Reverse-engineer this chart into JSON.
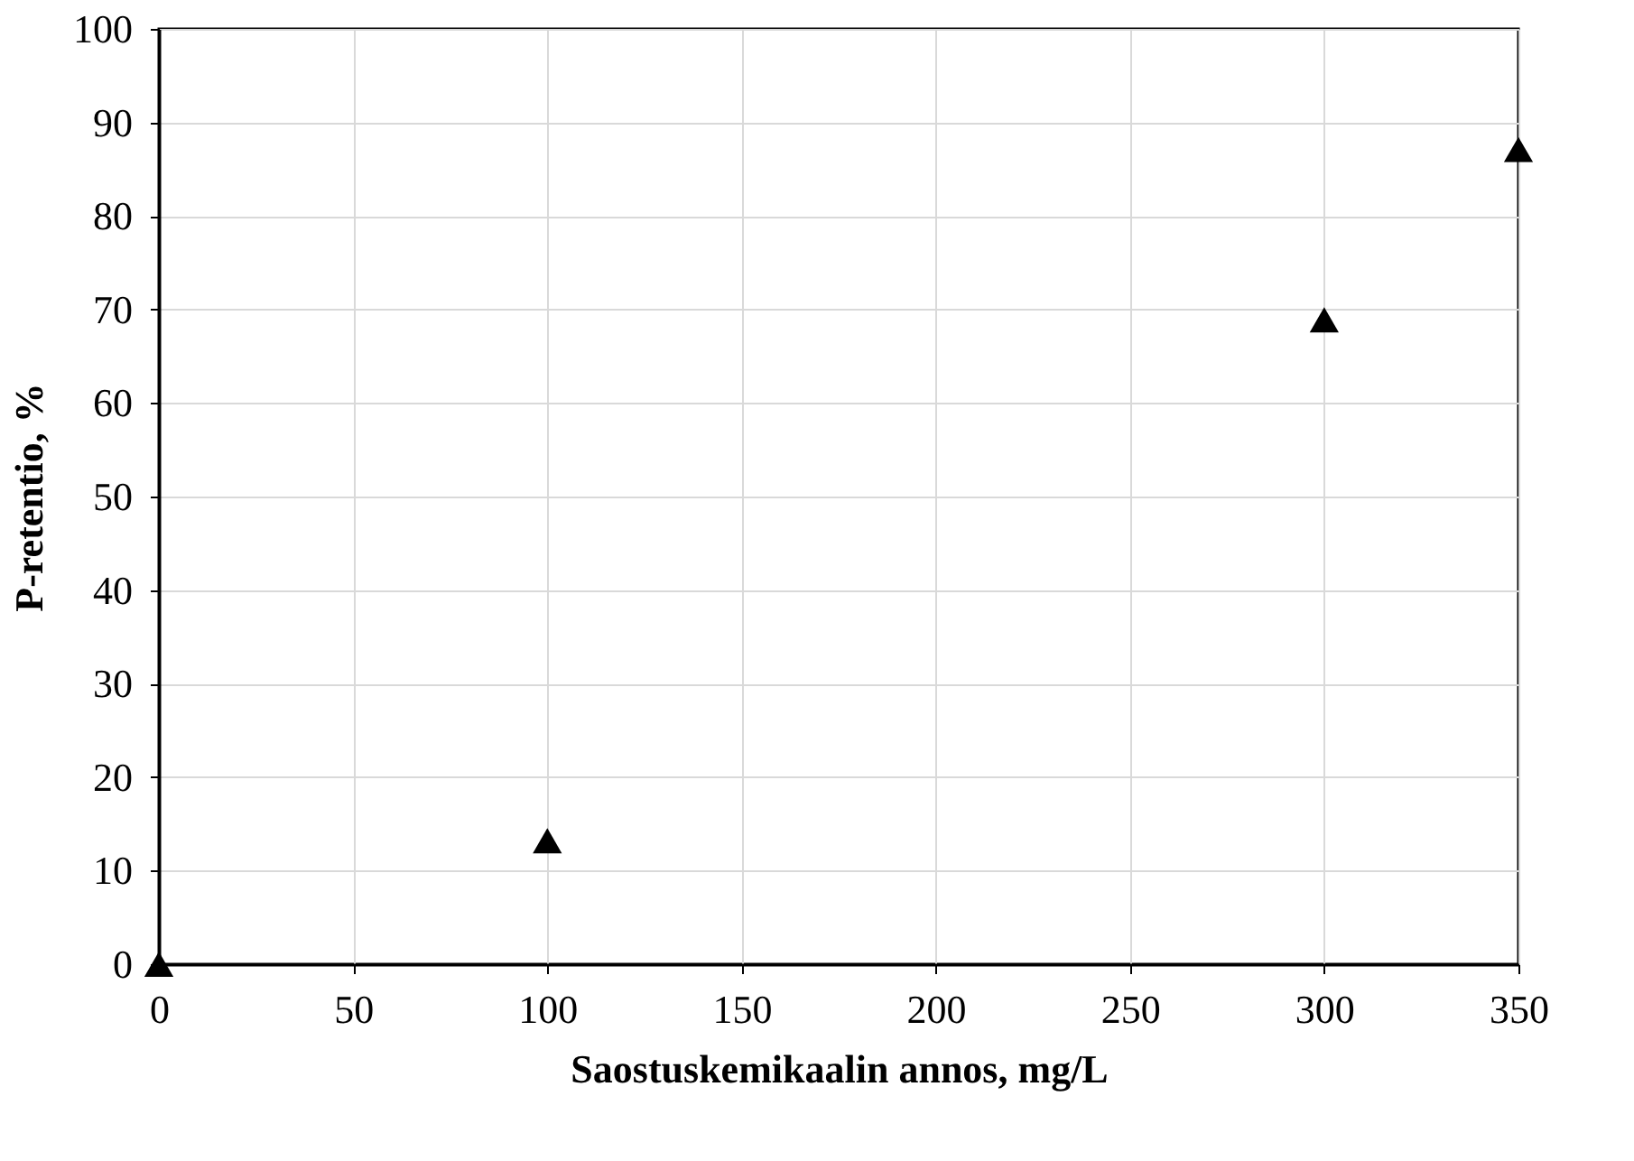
{
  "chart_data": {
    "type": "scatter",
    "xlabel": "Saostuskemikaalin annos, mg/L",
    "ylabel": "P-retentio, %",
    "x": [
      0,
      100,
      300,
      350
    ],
    "series": [
      {
        "color": "#000000",
        "values": [
          0,
          13.2,
          68.9,
          87.1
        ]
      }
    ],
    "xlim": [
      0,
      350
    ],
    "xticks": [
      0,
      50,
      100,
      150,
      200,
      250,
      300,
      350
    ],
    "ylim": [
      0,
      100
    ],
    "yticks": [
      0,
      10,
      20,
      30,
      40,
      50,
      60,
      70,
      80,
      90,
      100
    ],
    "grid": true,
    "marker": "triangle"
  }
}
